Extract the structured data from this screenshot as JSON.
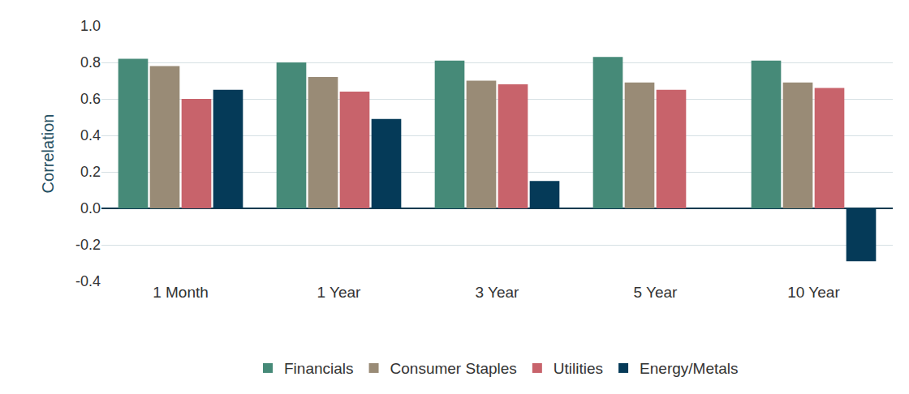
{
  "chart_data": {
    "type": "bar",
    "y_label": "Correlation",
    "categories": [
      "1 Month",
      "1 Year",
      "3 Year",
      "5 Year",
      "10 Year"
    ],
    "series": [
      {
        "name": "Financials",
        "color": "#468a78",
        "values": [
          0.82,
          0.8,
          0.81,
          0.83,
          0.81
        ]
      },
      {
        "name": "Consumer Staples",
        "color": "#998b76",
        "values": [
          0.78,
          0.72,
          0.7,
          0.69,
          0.69
        ]
      },
      {
        "name": "Utilities",
        "color": "#c8636b",
        "values": [
          0.6,
          0.64,
          0.68,
          0.65,
          0.66
        ]
      },
      {
        "name": "Energy/Metals",
        "color": "#053a58",
        "values": [
          0.65,
          0.49,
          0.15,
          0,
          -0.29
        ]
      }
    ],
    "ylim": [
      -0.4,
      1.0
    ],
    "yticks": [
      -0.4,
      -0.2,
      {
        "value": 0,
        "label": "0.0"
      },
      0.2,
      0.4,
      0.6,
      0.8,
      {
        "value": 1,
        "label": "1.0"
      }
    ],
    "grid": true,
    "legend": "bottom"
  }
}
